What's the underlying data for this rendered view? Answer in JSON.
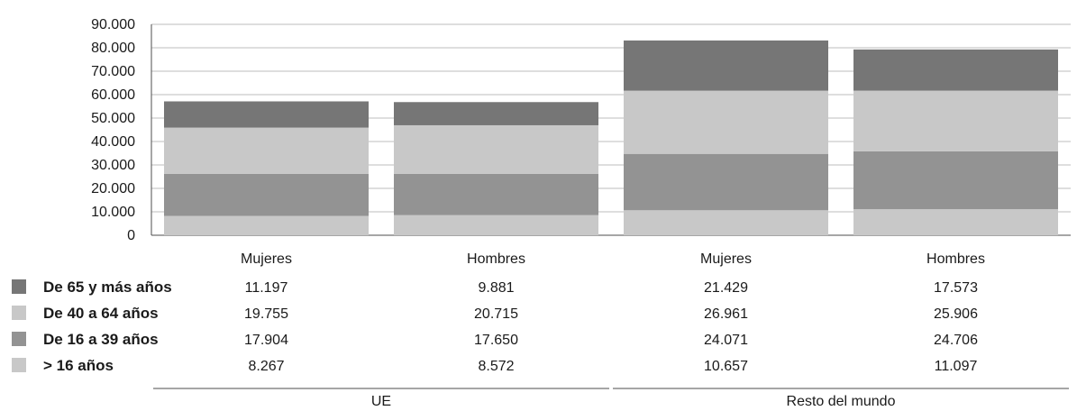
{
  "chart_data": {
    "type": "bar",
    "stacked": true,
    "title": "",
    "xlabel": "",
    "ylabel": "",
    "ylim": [
      0,
      90000
    ],
    "y_ticks": [
      "0",
      "10.000",
      "20.000",
      "30.000",
      "40.000",
      "50.000",
      "60.000",
      "70.000",
      "80.000",
      "90.000"
    ],
    "grid": true,
    "legend_placement": "data-table-left",
    "categories": [
      "Mujeres",
      "Hombres",
      "Mujeres",
      "Hombres"
    ],
    "groups": [
      {
        "name": "UE",
        "categories": [
          0,
          1
        ]
      },
      {
        "name": "Resto del mundo",
        "categories": [
          2,
          3
        ]
      }
    ],
    "series": [
      {
        "name": "> 16 años",
        "color": "#c8c8c8",
        "values": [
          8267,
          8572,
          10657,
          11097
        ],
        "labels": [
          "8.267",
          "8.572",
          "10.657",
          "11.097"
        ]
      },
      {
        "name": "De 16 a 39 años",
        "color": "#939393",
        "values": [
          17904,
          17650,
          24071,
          24706
        ],
        "labels": [
          "17.904",
          "17.650",
          "24.071",
          "24.706"
        ]
      },
      {
        "name": "De 40 a 64 años",
        "color": "#c8c8c8",
        "values": [
          19755,
          20715,
          26961,
          25906
        ],
        "labels": [
          "19.755",
          "20.715",
          "26.961",
          "25.906"
        ]
      },
      {
        "name": "De 65 y más años",
        "color": "#767676",
        "values": [
          11197,
          9881,
          21429,
          17573
        ],
        "labels": [
          "11.197",
          "9.881",
          "21.429",
          "17.573"
        ]
      }
    ],
    "table_row_order": [
      3,
      2,
      1,
      0
    ]
  }
}
